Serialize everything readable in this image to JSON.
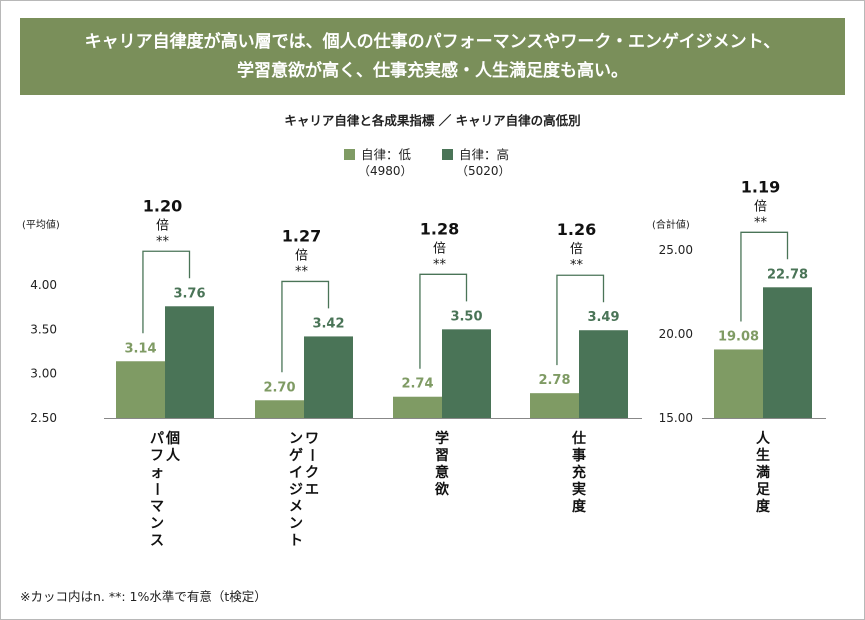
{
  "headline": {
    "line1": "キャリア自律度が高い層では、個人の仕事のパフォーマンスやワーク・エンゲイジメント、",
    "line2": "学習意欲が高く、仕事充実感・人生満足度も高い。"
  },
  "legend": {
    "low_label": "自律：低",
    "low_n": "（4980）",
    "high_label": "自律：高",
    "high_n": "（5020）"
  },
  "footnote": "※カッコ内はn. **: 1%水準で有意（t検定）",
  "colors": {
    "low": "#7f9b64",
    "high": "#4a7457",
    "low_text": "#7f9b64",
    "high_text": "#4a7457",
    "header_bg": "#7a8f5a"
  },
  "chart_data": [
    {
      "type": "bar",
      "title": "キャリア自律と各成果指標 ／ キャリア自律の高低別",
      "unit_label": "(平均値)",
      "ylim": [
        2.5,
        4.0
      ],
      "yticks": [
        "4.00",
        "3.50",
        "3.00",
        "2.50"
      ],
      "grid": false,
      "categories": [
        "個人パフォーマンス",
        "ワークエンゲイジメント",
        "学習意欲",
        "仕事充実度"
      ],
      "series": [
        {
          "name": "自律：低",
          "values": [
            3.14,
            2.7,
            2.74,
            2.78
          ],
          "labels": [
            "3.14",
            "2.70",
            "2.74",
            "2.78"
          ]
        },
        {
          "name": "自律：高",
          "values": [
            3.76,
            3.42,
            3.5,
            3.49
          ],
          "labels": [
            "3.76",
            "3.42",
            "3.50",
            "3.49"
          ]
        }
      ],
      "ratios": [
        "1.20",
        "1.27",
        "1.28",
        "1.26"
      ],
      "ratio_unit": "倍",
      "significance": [
        "**",
        "**",
        "**",
        "**"
      ]
    },
    {
      "type": "bar",
      "unit_label": "(合計値)",
      "ylim": [
        15.0,
        25.0
      ],
      "yticks": [
        "25.00",
        "20.00",
        "15.00"
      ],
      "grid": false,
      "categories": [
        "人生満足度"
      ],
      "series": [
        {
          "name": "自律：低",
          "values": [
            19.08
          ],
          "labels": [
            "19.08"
          ]
        },
        {
          "name": "自律：高",
          "values": [
            22.78
          ],
          "labels": [
            "22.78"
          ]
        }
      ],
      "ratios": [
        "1.19"
      ],
      "ratio_unit": "倍",
      "significance": [
        "**"
      ]
    }
  ]
}
